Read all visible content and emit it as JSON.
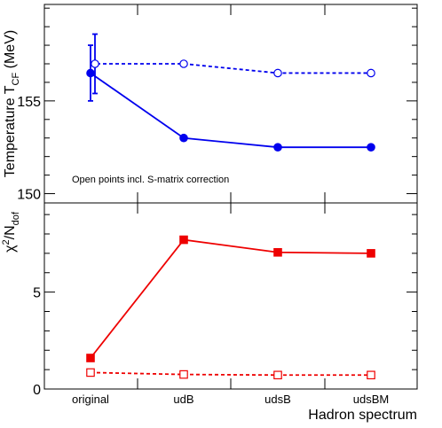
{
  "chart_data": [
    {
      "type": "line",
      "categories": [
        "original",
        "udB",
        "udsB",
        "udsBM"
      ],
      "ylabel_main": "Temperature T",
      "ylabel_sub": "CF",
      "ylabel_unit": " (MeV)",
      "ylim": [
        149.5,
        160.2
      ],
      "yticks_major": [
        150,
        155
      ],
      "yticks_major_labels": [
        "150",
        "155"
      ],
      "yticks_minor_step": 1,
      "annotation": "Open points incl. S-matrix correction",
      "series": [
        {
          "style": "solid",
          "marker": "filled-circle",
          "color": "#0000ee",
          "values": [
            156.5,
            153.0,
            152.5,
            152.5
          ],
          "error": [
            1.5,
            0,
            0,
            0
          ]
        },
        {
          "style": "dashed",
          "marker": "open-circle",
          "color": "#0000ee",
          "values": [
            157.0,
            157.0,
            156.5,
            156.5
          ],
          "error": [
            1.6,
            0,
            0,
            0
          ]
        }
      ]
    },
    {
      "type": "line",
      "categories": [
        "original",
        "udB",
        "udsB",
        "udsBM"
      ],
      "ylabel_main": "χ",
      "ylabel_sup": "2",
      "ylabel_mid": "/N",
      "ylabel_sub": "dof",
      "xlabel": "Hadron spectrum",
      "ylim": [
        0,
        9.6
      ],
      "yticks_major": [
        0,
        5
      ],
      "yticks_major_labels": [
        "0",
        "5"
      ],
      "yticks_minor_step": 1,
      "series": [
        {
          "style": "solid",
          "marker": "filled-square",
          "color": "#ee0000",
          "values": [
            1.6,
            7.7,
            7.05,
            7.0
          ]
        },
        {
          "style": "dashed",
          "marker": "open-square",
          "color": "#ee0000",
          "values": [
            0.85,
            0.75,
            0.72,
            0.72
          ]
        }
      ]
    }
  ]
}
